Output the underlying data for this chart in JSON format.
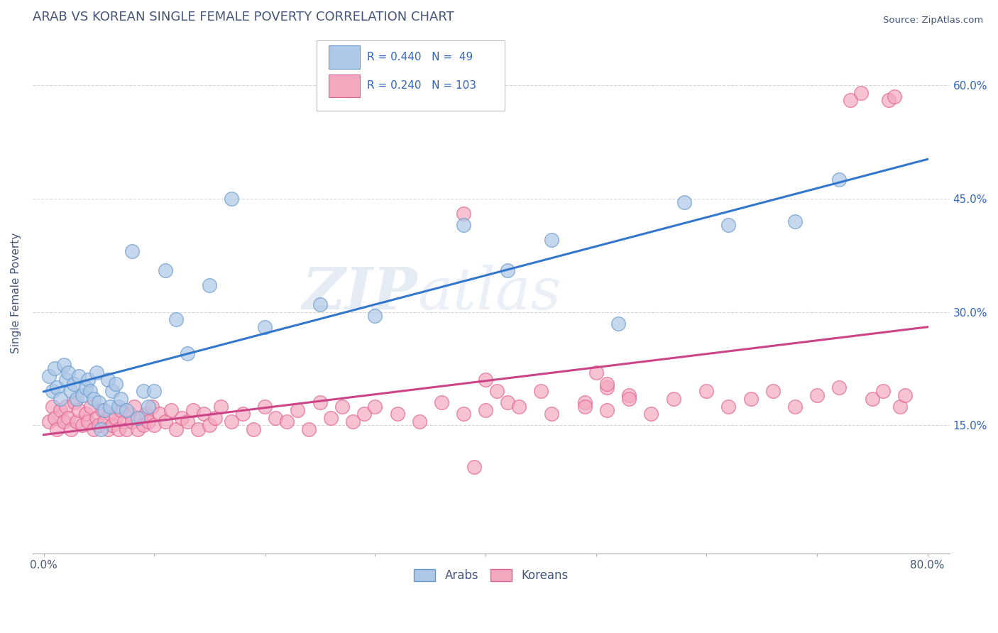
{
  "title": "ARAB VS KOREAN SINGLE FEMALE POVERTY CORRELATION CHART",
  "source": "Source: ZipAtlas.com",
  "ylabel": "Single Female Poverty",
  "xlim": [
    -0.01,
    0.82
  ],
  "ylim": [
    -0.02,
    0.67
  ],
  "xtick_positions": [
    0.0,
    0.1,
    0.2,
    0.3,
    0.4,
    0.5,
    0.6,
    0.7,
    0.8
  ],
  "xticklabels": [
    "0.0%",
    "",
    "",
    "",
    "",
    "",
    "",
    "",
    "80.0%"
  ],
  "ytick_positions": [
    0.15,
    0.3,
    0.45,
    0.6
  ],
  "ytick_labels": [
    "15.0%",
    "30.0%",
    "45.0%",
    "60.0%"
  ],
  "arab_fill_color": "#aec8e8",
  "arab_edge_color": "#6699cc",
  "korean_fill_color": "#f4a8c0",
  "korean_edge_color": "#e06090",
  "line_arab_color": "#3377cc",
  "line_korean_color": "#cc4488",
  "arab_R": 0.44,
  "arab_N": 49,
  "korean_R": 0.24,
  "korean_N": 103,
  "watermark_zip": "ZIP",
  "watermark_atlas": "atlas",
  "title_color": "#445577",
  "axis_label_color": "#445577",
  "tick_color": "#445577",
  "legend_text_color": "#3366bb",
  "grid_color": "#cccccc",
  "background_color": "#ffffff",
  "arab_scatter_x": [
    0.005,
    0.008,
    0.01,
    0.012,
    0.015,
    0.018,
    0.02,
    0.022,
    0.025,
    0.027,
    0.03,
    0.032,
    0.035,
    0.038,
    0.04,
    0.042,
    0.045,
    0.048,
    0.05,
    0.052,
    0.055,
    0.058,
    0.06,
    0.062,
    0.065,
    0.068,
    0.07,
    0.075,
    0.08,
    0.085,
    0.09,
    0.095,
    0.1,
    0.11,
    0.12,
    0.13,
    0.15,
    0.17,
    0.2,
    0.25,
    0.3,
    0.38,
    0.42,
    0.46,
    0.52,
    0.58,
    0.62,
    0.68,
    0.72
  ],
  "arab_scatter_y": [
    0.215,
    0.195,
    0.225,
    0.2,
    0.185,
    0.23,
    0.21,
    0.22,
    0.195,
    0.205,
    0.185,
    0.215,
    0.19,
    0.2,
    0.21,
    0.195,
    0.185,
    0.22,
    0.18,
    0.145,
    0.17,
    0.21,
    0.175,
    0.195,
    0.205,
    0.175,
    0.185,
    0.17,
    0.38,
    0.16,
    0.195,
    0.175,
    0.195,
    0.355,
    0.29,
    0.245,
    0.335,
    0.45,
    0.28,
    0.31,
    0.295,
    0.415,
    0.355,
    0.395,
    0.285,
    0.445,
    0.415,
    0.42,
    0.475
  ],
  "korean_scatter_x": [
    0.005,
    0.008,
    0.01,
    0.012,
    0.015,
    0.018,
    0.02,
    0.022,
    0.025,
    0.028,
    0.03,
    0.032,
    0.035,
    0.038,
    0.04,
    0.043,
    0.045,
    0.048,
    0.05,
    0.053,
    0.055,
    0.058,
    0.06,
    0.062,
    0.065,
    0.068,
    0.07,
    0.073,
    0.075,
    0.078,
    0.08,
    0.082,
    0.085,
    0.088,
    0.09,
    0.093,
    0.095,
    0.098,
    0.1,
    0.105,
    0.11,
    0.115,
    0.12,
    0.125,
    0.13,
    0.135,
    0.14,
    0.145,
    0.15,
    0.155,
    0.16,
    0.17,
    0.18,
    0.19,
    0.2,
    0.21,
    0.22,
    0.23,
    0.24,
    0.25,
    0.26,
    0.27,
    0.28,
    0.29,
    0.3,
    0.32,
    0.34,
    0.36,
    0.38,
    0.39,
    0.4,
    0.42,
    0.43,
    0.45,
    0.46,
    0.49,
    0.51,
    0.53,
    0.55,
    0.57,
    0.6,
    0.62,
    0.64,
    0.66,
    0.68,
    0.7,
    0.72,
    0.73,
    0.74,
    0.75,
    0.76,
    0.765,
    0.77,
    0.775,
    0.78,
    0.5,
    0.51,
    0.38,
    0.4,
    0.41,
    0.49,
    0.51,
    0.53
  ],
  "korean_scatter_y": [
    0.155,
    0.175,
    0.16,
    0.145,
    0.17,
    0.155,
    0.175,
    0.16,
    0.145,
    0.18,
    0.155,
    0.17,
    0.15,
    0.165,
    0.155,
    0.175,
    0.145,
    0.16,
    0.15,
    0.17,
    0.155,
    0.145,
    0.165,
    0.15,
    0.16,
    0.145,
    0.17,
    0.155,
    0.145,
    0.165,
    0.155,
    0.175,
    0.145,
    0.16,
    0.15,
    0.165,
    0.155,
    0.175,
    0.15,
    0.165,
    0.155,
    0.17,
    0.145,
    0.16,
    0.155,
    0.17,
    0.145,
    0.165,
    0.15,
    0.16,
    0.175,
    0.155,
    0.165,
    0.145,
    0.175,
    0.16,
    0.155,
    0.17,
    0.145,
    0.18,
    0.16,
    0.175,
    0.155,
    0.165,
    0.175,
    0.165,
    0.155,
    0.18,
    0.165,
    0.095,
    0.17,
    0.18,
    0.175,
    0.195,
    0.165,
    0.18,
    0.2,
    0.19,
    0.165,
    0.185,
    0.195,
    0.175,
    0.185,
    0.195,
    0.175,
    0.19,
    0.2,
    0.58,
    0.59,
    0.185,
    0.195,
    0.58,
    0.585,
    0.175,
    0.19,
    0.22,
    0.205,
    0.43,
    0.21,
    0.195,
    0.175,
    0.17,
    0.185
  ]
}
